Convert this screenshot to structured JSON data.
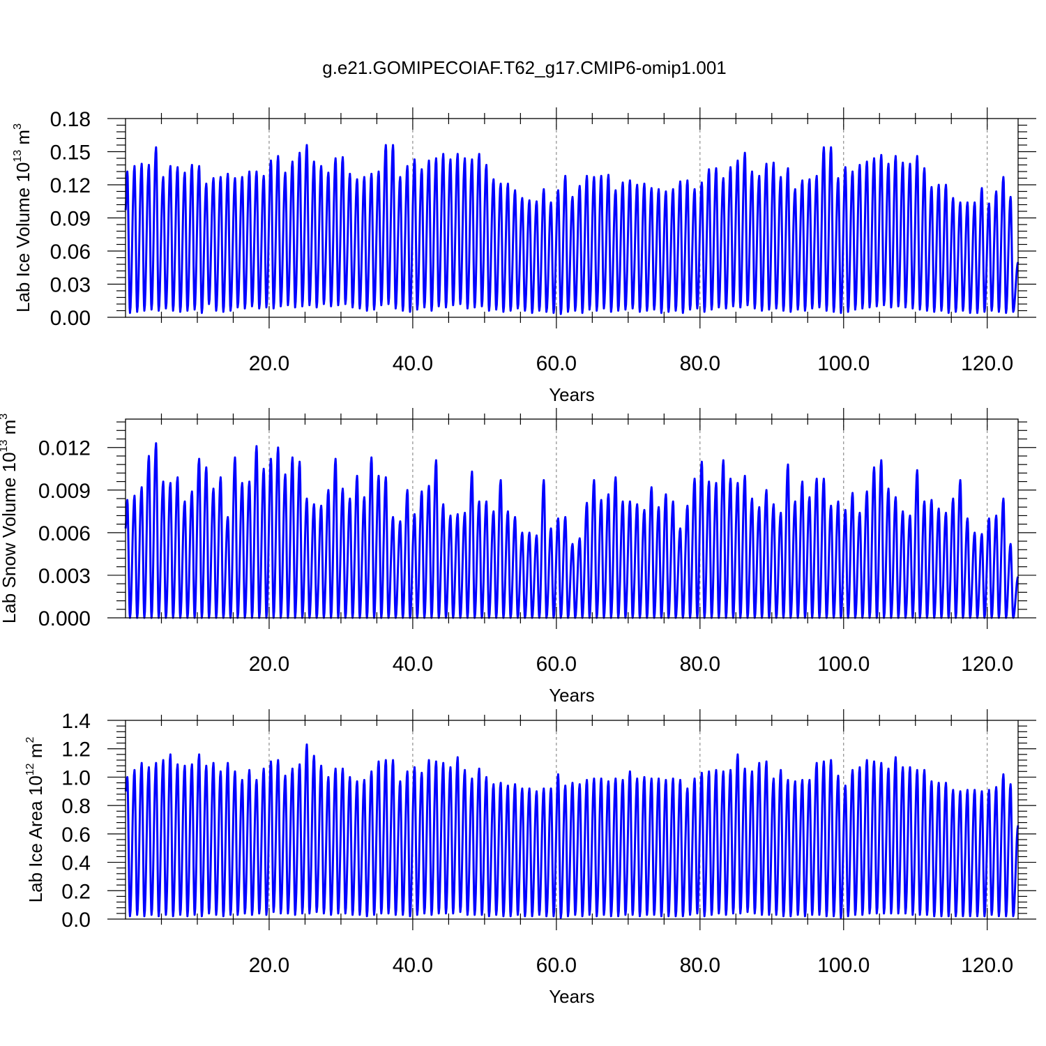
{
  "title": "g.e21.GOMIPECOIAF.T62_g17.CMIP6-omip1.001",
  "colors": {
    "series": "#0000ff",
    "axis": "#000000",
    "grid": "#777777"
  },
  "chart_data": [
    {
      "type": "line",
      "name": "ice-volume",
      "ylabel_main": "Lab Ice Volume 10",
      "ylabel_exp": "13",
      "ylabel_unit": " m",
      "ylabel_unit_exp": "3",
      "xlabel": "Years",
      "xlim": [
        0.0,
        124.3
      ],
      "ylim": [
        0.0,
        0.18
      ],
      "xticks": [
        20,
        40,
        60,
        80,
        100,
        120
      ],
      "xtick_labels": [
        "20.0",
        "40.0",
        "60.0",
        "80.0",
        "100.0",
        "120.0"
      ],
      "yticks": [
        0,
        0.03,
        0.06,
        0.09,
        0.12,
        0.15,
        0.18
      ],
      "ytick_labels": [
        "0.00",
        "0.03",
        "0.06",
        "0.09",
        "0.12",
        "0.15",
        "0.18"
      ],
      "grid_x": true,
      "series": [
        {
          "start_year": 0.0,
          "start_value": 0.097,
          "end_value": 0.05,
          "annual_max": [
            0.132,
            0.137,
            0.139,
            0.138,
            0.154,
            0.127,
            0.137,
            0.136,
            0.131,
            0.138,
            0.137,
            0.121,
            0.126,
            0.127,
            0.13,
            0.126,
            0.127,
            0.132,
            0.132,
            0.128,
            0.142,
            0.146,
            0.131,
            0.141,
            0.149,
            0.156,
            0.141,
            0.137,
            0.131,
            0.144,
            0.145,
            0.13,
            0.125,
            0.127,
            0.13,
            0.132,
            0.156,
            0.156,
            0.127,
            0.137,
            0.143,
            0.134,
            0.142,
            0.144,
            0.148,
            0.143,
            0.148,
            0.144,
            0.143,
            0.148,
            0.138,
            0.125,
            0.121,
            0.121,
            0.115,
            0.108,
            0.106,
            0.105,
            0.116,
            0.104,
            0.115,
            0.128,
            0.109,
            0.119,
            0.128,
            0.127,
            0.128,
            0.129,
            0.115,
            0.122,
            0.124,
            0.12,
            0.121,
            0.117,
            0.116,
            0.114,
            0.116,
            0.123,
            0.124,
            0.116,
            0.122,
            0.134,
            0.135,
            0.126,
            0.136,
            0.142,
            0.149,
            0.132,
            0.128,
            0.139,
            0.14,
            0.127,
            0.135,
            0.116,
            0.124,
            0.125,
            0.128,
            0.154,
            0.154,
            0.126,
            0.136,
            0.132,
            0.138,
            0.141,
            0.144,
            0.147,
            0.139,
            0.146,
            0.14,
            0.139,
            0.146,
            0.135,
            0.118,
            0.12,
            0.12,
            0.108,
            0.104,
            0.104,
            0.104,
            0.117,
            0.103,
            0.114,
            0.127,
            0.109
          ],
          "annual_min": [
            0.004,
            0.005,
            0.006,
            0.007,
            0.006,
            0.008,
            0.006,
            0.005,
            0.006,
            0.007,
            0.004,
            0.012,
            0.006,
            0.005,
            0.006,
            0.009,
            0.008,
            0.01,
            0.008,
            0.009,
            0.008,
            0.01,
            0.011,
            0.009,
            0.01,
            0.011,
            0.009,
            0.012,
            0.01,
            0.011,
            0.012,
            0.009,
            0.008,
            0.006,
            0.007,
            0.011,
            0.012,
            0.008,
            0.006,
            0.005,
            0.007,
            0.009,
            0.006,
            0.01,
            0.009,
            0.011,
            0.012,
            0.008,
            0.009,
            0.01,
            0.006,
            0.007,
            0.005,
            0.006,
            0.008,
            0.006,
            0.004,
            0.006,
            0.005,
            0.004,
            0.003,
            0.005,
            0.006,
            0.004,
            0.007,
            0.006,
            0.008,
            0.005,
            0.006,
            0.007,
            0.008,
            0.005,
            0.006,
            0.007,
            0.004,
            0.005,
            0.006,
            0.004,
            0.007,
            0.008,
            0.005,
            0.007,
            0.009,
            0.008,
            0.01,
            0.009,
            0.011,
            0.008,
            0.006,
            0.007,
            0.008,
            0.006,
            0.005,
            0.007,
            0.006,
            0.008,
            0.009,
            0.006,
            0.005,
            0.004,
            0.005,
            0.007,
            0.008,
            0.009,
            0.01,
            0.011,
            0.009,
            0.01,
            0.009,
            0.008,
            0.007,
            0.006,
            0.005,
            0.006,
            0.004,
            0.005,
            0.006,
            0.004,
            0.004,
            0.005,
            0.006,
            0.005,
            0.004,
            0.005
          ]
        }
      ]
    },
    {
      "type": "line",
      "name": "snow-volume",
      "ylabel_main": "Lab Snow Volume 10",
      "ylabel_exp": "13",
      "ylabel_unit": " m",
      "ylabel_unit_exp": "3",
      "xlabel": "Years",
      "xlim": [
        0.0,
        124.3
      ],
      "ylim": [
        0.0,
        0.014
      ],
      "xticks": [
        20,
        40,
        60,
        80,
        100,
        120
      ],
      "xtick_labels": [
        "20.0",
        "40.0",
        "60.0",
        "80.0",
        "100.0",
        "120.0"
      ],
      "yticks": [
        0,
        0.003,
        0.006,
        0.009,
        0.012
      ],
      "ytick_labels": [
        "0.000",
        "0.003",
        "0.006",
        "0.009",
        "0.012"
      ],
      "grid_x": true,
      "series": [
        {
          "start_year": 0.0,
          "start_value": 0.0063,
          "end_value": 0.0029,
          "annual_max": [
            0.0083,
            0.0086,
            0.0092,
            0.0114,
            0.0123,
            0.0096,
            0.0095,
            0.0099,
            0.0082,
            0.0089,
            0.0112,
            0.0106,
            0.0091,
            0.0099,
            0.0071,
            0.0113,
            0.0095,
            0.0096,
            0.0121,
            0.0105,
            0.0112,
            0.012,
            0.0101,
            0.0113,
            0.011,
            0.0084,
            0.008,
            0.0079,
            0.009,
            0.0112,
            0.0091,
            0.0084,
            0.01,
            0.0085,
            0.0113,
            0.01,
            0.0099,
            0.0071,
            0.0068,
            0.009,
            0.0073,
            0.0089,
            0.0093,
            0.0111,
            0.008,
            0.0072,
            0.0073,
            0.0074,
            0.0103,
            0.0082,
            0.0082,
            0.0075,
            0.0097,
            0.0075,
            0.0071,
            0.006,
            0.006,
            0.0058,
            0.0097,
            0.0063,
            0.007,
            0.0071,
            0.0052,
            0.0056,
            0.0081,
            0.0097,
            0.0083,
            0.0087,
            0.0099,
            0.0082,
            0.0082,
            0.008,
            0.0076,
            0.0092,
            0.0078,
            0.0087,
            0.0082,
            0.0063,
            0.0079,
            0.0098,
            0.011,
            0.0096,
            0.0095,
            0.0111,
            0.0098,
            0.0095,
            0.01,
            0.0084,
            0.0078,
            0.009,
            0.008,
            0.0074,
            0.0108,
            0.0082,
            0.0096,
            0.0085,
            0.0098,
            0.0098,
            0.0079,
            0.0082,
            0.0076,
            0.0088,
            0.0074,
            0.0089,
            0.0106,
            0.0111,
            0.0091,
            0.0085,
            0.0075,
            0.0072,
            0.0104,
            0.0082,
            0.0083,
            0.0077,
            0.0074,
            0.0084,
            0.0097,
            0.007,
            0.006,
            0.0059,
            0.007,
            0.0072,
            0.0084,
            0.0052
          ],
          "annual_min": [
            0.0,
            0.0,
            0.0,
            0.0,
            0.0,
            0.0,
            0.0,
            0.0,
            0.0,
            0.0,
            0.0,
            0.0,
            0.0,
            0.0,
            0.0,
            0.0,
            0.0,
            0.0,
            0.0,
            0.0,
            0.0,
            0.0,
            0.0,
            0.0,
            0.0,
            0.0,
            0.0,
            0.0,
            0.0,
            0.0,
            0.0,
            0.0,
            0.0,
            0.0,
            0.0,
            0.0,
            0.0,
            0.0,
            0.0,
            0.0,
            0.0,
            0.0,
            0.0,
            0.0,
            0.0,
            0.0,
            0.0,
            0.0,
            0.0,
            0.0,
            0.0,
            0.0,
            0.0,
            0.0,
            0.0,
            0.0,
            0.0,
            0.0,
            0.0,
            0.0,
            0.0,
            0.0,
            0.0,
            0.0,
            0.0,
            0.0,
            0.0,
            0.0,
            0.0,
            0.0,
            0.0,
            0.0,
            0.0,
            0.0,
            0.0,
            0.0,
            0.0,
            0.0,
            0.0,
            0.0,
            0.0,
            0.0,
            0.0,
            0.0,
            0.0,
            0.0,
            0.0,
            0.0,
            0.0,
            0.0,
            0.0,
            0.0,
            0.0,
            0.0,
            0.0,
            0.0,
            0.0,
            0.0,
            0.0,
            0.0,
            0.0,
            0.0,
            0.0,
            0.0,
            0.0,
            0.0,
            0.0,
            0.0,
            0.0,
            0.0,
            0.0,
            0.0,
            0.0,
            0.0,
            0.0,
            0.0,
            0.0,
            0.0,
            0.0,
            0.0,
            0.0,
            0.0,
            0.0,
            0.0
          ]
        }
      ]
    },
    {
      "type": "line",
      "name": "ice-area",
      "ylabel_main": "Lab Ice Area 10",
      "ylabel_exp": "12",
      "ylabel_unit": " m",
      "ylabel_unit_exp": "2",
      "xlabel": "Years",
      "xlim": [
        0.0,
        124.3
      ],
      "ylim": [
        0.0,
        1.4
      ],
      "xticks": [
        20,
        40,
        60,
        80,
        100,
        120
      ],
      "xtick_labels": [
        "20.0",
        "40.0",
        "60.0",
        "80.0",
        "100.0",
        "120.0"
      ],
      "yticks": [
        0,
        0.2,
        0.4,
        0.6,
        0.8,
        1.0,
        1.2,
        1.4
      ],
      "ytick_labels": [
        "0.0",
        "0.2",
        "0.4",
        "0.6",
        "0.8",
        "1.0",
        "1.2",
        "1.4"
      ],
      "grid_x": true,
      "series": [
        {
          "start_year": 0.0,
          "start_value": 0.9,
          "end_value": 0.66,
          "annual_max": [
            1.0,
            1.05,
            1.1,
            1.07,
            1.1,
            1.12,
            1.16,
            1.09,
            1.08,
            1.09,
            1.16,
            1.08,
            1.1,
            1.04,
            1.1,
            1.04,
            0.98,
            1.05,
            0.98,
            1.06,
            1.11,
            1.12,
            1.01,
            1.06,
            1.09,
            1.23,
            1.15,
            1.08,
            1.0,
            1.06,
            1.06,
            1.0,
            0.97,
            0.98,
            1.04,
            1.11,
            1.12,
            1.12,
            0.97,
            1.04,
            1.07,
            1.03,
            1.12,
            1.11,
            1.1,
            1.07,
            1.14,
            1.05,
            0.99,
            1.06,
            1.0,
            0.95,
            0.96,
            0.94,
            0.95,
            0.92,
            0.92,
            0.9,
            0.92,
            0.92,
            1.02,
            0.94,
            0.96,
            0.95,
            0.98,
            0.99,
            0.99,
            0.97,
            0.99,
            0.98,
            1.04,
            0.99,
            1.0,
            0.99,
            0.99,
            0.98,
            0.99,
            0.98,
            0.92,
            0.99,
            1.03,
            1.04,
            1.05,
            1.04,
            1.05,
            1.16,
            1.06,
            1.04,
            1.1,
            1.11,
            0.99,
            1.05,
            0.98,
            0.97,
            0.98,
            0.98,
            1.1,
            1.11,
            1.12,
            1.01,
            0.94,
            1.05,
            1.07,
            1.12,
            1.11,
            1.1,
            1.06,
            1.14,
            1.07,
            1.07,
            1.05,
            1.05,
            0.97,
            0.96,
            0.96,
            0.91,
            0.9,
            0.91,
            0.91,
            0.9,
            0.91,
            0.93,
            1.02,
            0.95
          ],
          "annual_min": [
            0.02,
            0.03,
            0.02,
            0.03,
            0.02,
            0.03,
            0.02,
            0.03,
            0.02,
            0.03,
            0.02,
            0.04,
            0.03,
            0.02,
            0.03,
            0.03,
            0.04,
            0.03,
            0.04,
            0.03,
            0.05,
            0.04,
            0.04,
            0.03,
            0.04,
            0.04,
            0.05,
            0.04,
            0.03,
            0.04,
            0.04,
            0.03,
            0.03,
            0.02,
            0.03,
            0.04,
            0.04,
            0.03,
            0.03,
            0.02,
            0.03,
            0.04,
            0.03,
            0.04,
            0.04,
            0.04,
            0.05,
            0.03,
            0.03,
            0.03,
            0.02,
            0.03,
            0.02,
            0.02,
            0.03,
            0.02,
            0.02,
            0.03,
            0.02,
            0.02,
            0.01,
            0.02,
            0.03,
            0.02,
            0.03,
            0.02,
            0.03,
            0.02,
            0.02,
            0.03,
            0.03,
            0.02,
            0.03,
            0.03,
            0.02,
            0.02,
            0.02,
            0.02,
            0.03,
            0.04,
            0.02,
            0.03,
            0.04,
            0.03,
            0.04,
            0.04,
            0.05,
            0.04,
            0.03,
            0.03,
            0.03,
            0.02,
            0.02,
            0.03,
            0.02,
            0.03,
            0.03,
            0.02,
            0.02,
            0.01,
            0.02,
            0.03,
            0.03,
            0.04,
            0.04,
            0.04,
            0.04,
            0.04,
            0.04,
            0.03,
            0.03,
            0.03,
            0.02,
            0.02,
            0.02,
            0.02,
            0.02,
            0.02,
            0.02,
            0.02,
            0.03,
            0.02,
            0.02,
            0.02
          ]
        }
      ]
    }
  ]
}
